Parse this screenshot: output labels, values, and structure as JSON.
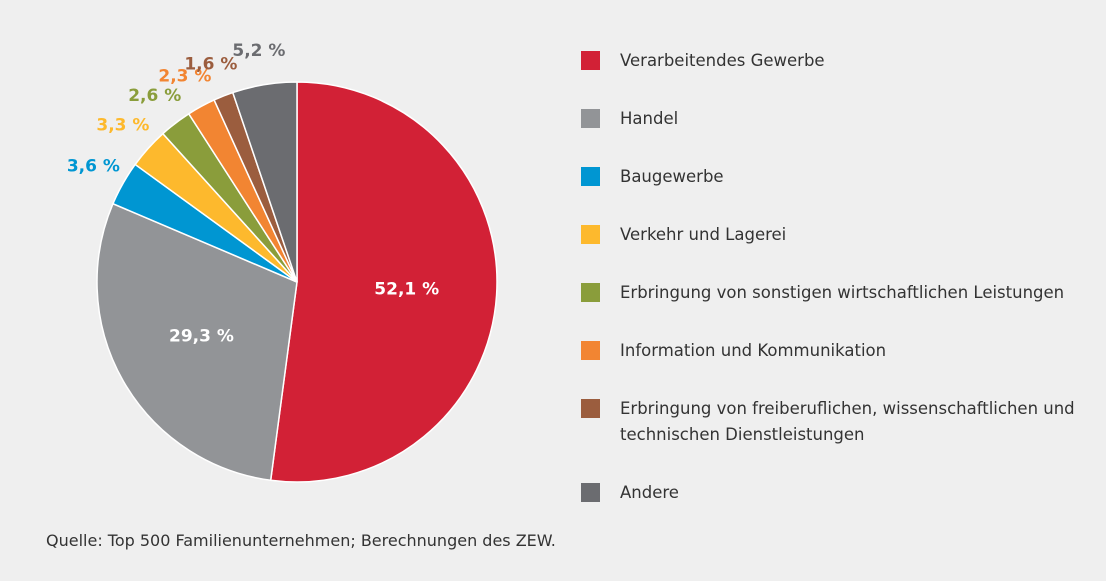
{
  "chart_data": {
    "type": "pie",
    "categories": [
      "Verarbeitendes Gewerbe",
      "Handel",
      "Baugewerbe",
      "Verkehr und Lagerei",
      "Erbringung von sonstigen wirtschaftlichen Leistungen",
      "Information und Kommunikation",
      "Erbringung von freiberuflichen, wissenschaftlichen und technischen Dienstleistungen",
      "Andere"
    ],
    "values": [
      52.1,
      29.3,
      3.6,
      3.3,
      2.6,
      2.3,
      1.6,
      5.2
    ],
    "value_labels": [
      "52,1 %",
      "29,3 %",
      "3,6 %",
      "3,3 %",
      "2,6 %",
      "2,3 %",
      "1,6 %",
      "5,2 %"
    ],
    "colors": [
      "#d22136",
      "#929497",
      "#0096d2",
      "#fdb92d",
      "#8a9d3b",
      "#f28532",
      "#9b5d3e",
      "#6b6c70"
    ],
    "source": "Quelle: Top 500 Familienunternehmen; Berechnungen des ZEW."
  }
}
